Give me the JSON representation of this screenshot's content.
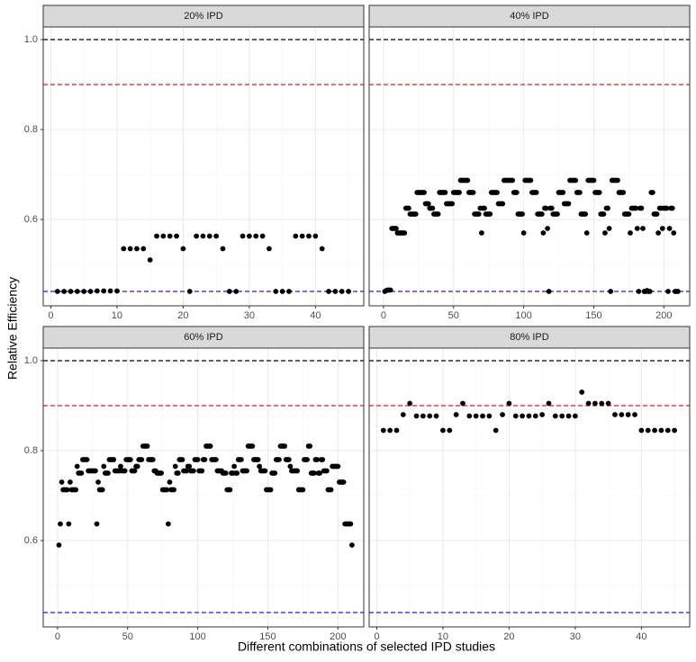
{
  "axis_labels": {
    "x": "Different combinations of selected IPD studies",
    "y": "Relative Efficiency"
  },
  "chart_data": [
    {
      "type": "scatter",
      "title": "20% IPD",
      "color": "#000000",
      "x": [
        1,
        2,
        3,
        4,
        5,
        6,
        7,
        8,
        9,
        10,
        11,
        12,
        13,
        14,
        15,
        16,
        17,
        18,
        19,
        20,
        21,
        22,
        23,
        24,
        25,
        26,
        27,
        28,
        29,
        30,
        31,
        32,
        33,
        34,
        35,
        36,
        37,
        38,
        39,
        40,
        41,
        42,
        43,
        44,
        45
      ],
      "values": [
        0.44,
        0.44,
        0.44,
        0.44,
        0.44,
        0.44,
        0.441,
        0.441,
        0.441,
        0.441,
        0.535,
        0.535,
        0.535,
        0.535,
        0.51,
        0.563,
        0.563,
        0.563,
        0.563,
        0.535,
        0.44,
        0.563,
        0.563,
        0.563,
        0.563,
        0.535,
        0.44,
        0.44,
        0.563,
        0.563,
        0.563,
        0.563,
        0.535,
        0.44,
        0.44,
        0.44,
        0.563,
        0.563,
        0.563,
        0.563,
        0.535,
        0.44,
        0.44,
        0.44,
        0.44
      ],
      "xlim": [
        -1.15,
        47.3
      ],
      "ylim": [
        0.408,
        1.028
      ],
      "xticks": [
        0,
        10,
        20,
        30,
        40
      ],
      "xminor": [
        5,
        15,
        25,
        35,
        45
      ],
      "yticks": [
        0.6,
        0.8,
        {
          "value": 1,
          "label": "1.0"
        }
      ],
      "yminor": [
        0.5,
        0.7,
        0.9
      ],
      "reference_lines": [
        {
          "value": 1,
          "color": "#000000"
        },
        {
          "value": 0.9,
          "color": "#e41a1c"
        },
        {
          "value": 0.44,
          "color": "#1f1fd6"
        }
      ]
    },
    {
      "type": "scatter",
      "title": "40% IPD",
      "color": "#000000",
      "x": [
        1,
        2,
        3,
        4,
        5,
        6,
        7,
        8,
        9,
        10,
        11,
        12,
        13,
        14,
        15,
        16,
        17,
        18,
        19,
        20,
        21,
        22,
        23,
        24,
        25,
        26,
        27,
        28,
        29,
        30,
        31,
        32,
        33,
        34,
        35,
        36,
        37,
        38,
        39,
        40,
        41,
        42,
        43,
        44,
        45,
        46,
        47,
        48,
        49,
        50,
        51,
        52,
        53,
        54,
        55,
        56,
        57,
        58,
        59,
        60,
        61,
        62,
        63,
        64,
        65,
        66,
        67,
        68,
        69,
        70,
        71,
        72,
        73,
        74,
        75,
        76,
        77,
        78,
        79,
        80,
        81,
        82,
        83,
        84,
        85,
        86,
        87,
        88,
        89,
        90,
        91,
        92,
        93,
        94,
        95,
        96,
        97,
        98,
        99,
        100,
        101,
        102,
        103,
        104,
        105,
        106,
        107,
        108,
        109,
        110,
        111,
        112,
        113,
        114,
        115,
        116,
        117,
        118,
        119,
        120,
        121,
        122,
        123,
        124,
        125,
        126,
        127,
        128,
        129,
        130,
        131,
        132,
        133,
        134,
        135,
        136,
        137,
        138,
        139,
        140,
        141,
        142,
        143,
        144,
        145,
        146,
        147,
        148,
        149,
        150,
        151,
        152,
        153,
        154,
        155,
        156,
        157,
        158,
        159,
        160,
        161,
        162,
        163,
        164,
        165,
        166,
        167,
        168,
        169,
        170,
        171,
        172,
        173,
        174,
        175,
        176,
        177,
        178,
        179,
        180,
        181,
        182,
        183,
        184,
        185,
        186,
        187,
        188,
        189,
        190,
        191,
        192,
        193,
        194,
        195,
        196,
        197,
        198,
        199,
        200,
        201,
        202,
        203,
        204,
        205,
        206,
        207,
        208,
        209,
        210
      ],
      "values": [
        0.44,
        0.442,
        0.443,
        0.443,
        0.443,
        0.58,
        0.58,
        0.58,
        0.58,
        0.57,
        0.57,
        0.57,
        0.57,
        0.57,
        0.57,
        0.625,
        0.625,
        0.625,
        0.612,
        0.612,
        0.612,
        0.612,
        0.612,
        0.66,
        0.66,
        0.66,
        0.66,
        0.66,
        0.66,
        0.635,
        0.635,
        0.635,
        0.625,
        0.625,
        0.625,
        0.612,
        0.612,
        0.612,
        0.612,
        0.66,
        0.66,
        0.66,
        0.66,
        0.66,
        0.635,
        0.635,
        0.635,
        0.635,
        0.635,
        0.66,
        0.66,
        0.66,
        0.66,
        0.66,
        0.687,
        0.687,
        0.687,
        0.687,
        0.687,
        0.687,
        0.66,
        0.66,
        0.66,
        0.66,
        0.612,
        0.612,
        0.612,
        0.612,
        0.625,
        0.57,
        0.625,
        0.625,
        0.612,
        0.612,
        0.612,
        0.612,
        0.66,
        0.66,
        0.66,
        0.66,
        0.66,
        0.635,
        0.635,
        0.635,
        0.635,
        0.687,
        0.687,
        0.687,
        0.687,
        0.687,
        0.687,
        0.687,
        0.66,
        0.66,
        0.66,
        0.612,
        0.612,
        0.612,
        0.612,
        0.57,
        0.687,
        0.687,
        0.687,
        0.687,
        0.687,
        0.66,
        0.66,
        0.66,
        0.66,
        0.612,
        0.612,
        0.612,
        0.612,
        0.57,
        0.625,
        0.625,
        0.58,
        0.44,
        0.625,
        0.625,
        0.612,
        0.612,
        0.612,
        0.612,
        0.66,
        0.66,
        0.66,
        0.66,
        0.635,
        0.635,
        0.635,
        0.635,
        0.687,
        0.687,
        0.687,
        0.687,
        0.687,
        0.66,
        0.66,
        0.66,
        0.612,
        0.612,
        0.612,
        0.612,
        0.57,
        0.687,
        0.687,
        0.687,
        0.687,
        0.687,
        0.66,
        0.66,
        0.66,
        0.66,
        0.612,
        0.612,
        0.612,
        0.57,
        0.625,
        0.625,
        0.58,
        0.44,
        0.687,
        0.687,
        0.687,
        0.687,
        0.687,
        0.66,
        0.66,
        0.66,
        0.66,
        0.612,
        0.612,
        0.612,
        0.612,
        0.57,
        0.625,
        0.625,
        0.625,
        0.625,
        0.58,
        0.44,
        0.625,
        0.625,
        0.58,
        0.44,
        0.44,
        0.442,
        0.44,
        0.44,
        0.66,
        0.66,
        0.612,
        0.612,
        0.612,
        0.57,
        0.625,
        0.625,
        0.58,
        0.625,
        0.625,
        0.625,
        0.44,
        0.58,
        0.625,
        0.625,
        0.57,
        0.44,
        0.44,
        0.44
      ],
      "xlim": [
        -10.2,
        218.4
      ],
      "ylim": [
        0.408,
        1.028
      ],
      "xticks": [
        0,
        50,
        100,
        150,
        200
      ],
      "xminor": [
        25,
        75,
        125,
        175
      ],
      "yticks": [
        0.6,
        0.8,
        {
          "value": 1,
          "label": "1.0"
        }
      ],
      "yminor": [
        0.5,
        0.7,
        0.9
      ],
      "reference_lines": [
        {
          "value": 1,
          "color": "#000000"
        },
        {
          "value": 0.9,
          "color": "#e41a1c"
        },
        {
          "value": 0.44,
          "color": "#1f1fd6"
        }
      ]
    },
    {
      "type": "scatter",
      "title": "60% IPD",
      "color": "#000000",
      "x": [
        1,
        2,
        3,
        4,
        5,
        6,
        7,
        8,
        9,
        10,
        11,
        12,
        13,
        14,
        15,
        16,
        17,
        18,
        19,
        20,
        21,
        22,
        23,
        24,
        25,
        26,
        27,
        28,
        29,
        30,
        31,
        32,
        33,
        34,
        35,
        36,
        37,
        38,
        39,
        40,
        41,
        42,
        43,
        44,
        45,
        46,
        47,
        48,
        49,
        50,
        51,
        52,
        53,
        54,
        55,
        56,
        57,
        58,
        59,
        60,
        61,
        62,
        63,
        64,
        65,
        66,
        67,
        68,
        69,
        70,
        71,
        72,
        73,
        74,
        75,
        76,
        77,
        78,
        79,
        80,
        81,
        82,
        83,
        84,
        85,
        86,
        87,
        88,
        89,
        90,
        91,
        92,
        93,
        94,
        95,
        96,
        97,
        98,
        99,
        100,
        101,
        102,
        103,
        104,
        105,
        106,
        107,
        108,
        109,
        110,
        111,
        112,
        113,
        114,
        115,
        116,
        117,
        118,
        119,
        120,
        121,
        122,
        123,
        124,
        125,
        126,
        127,
        128,
        129,
        130,
        131,
        132,
        133,
        134,
        135,
        136,
        137,
        138,
        139,
        140,
        141,
        142,
        143,
        144,
        145,
        146,
        147,
        148,
        149,
        150,
        151,
        152,
        153,
        154,
        155,
        156,
        157,
        158,
        159,
        160,
        161,
        162,
        163,
        164,
        165,
        166,
        167,
        168,
        169,
        170,
        171,
        172,
        173,
        174,
        175,
        176,
        177,
        178,
        179,
        180,
        181,
        182,
        183,
        184,
        185,
        186,
        187,
        188,
        189,
        190,
        191,
        192,
        193,
        194,
        195,
        196,
        197,
        198,
        199,
        200,
        201,
        202,
        203,
        204,
        205,
        206,
        207,
        208,
        209,
        210
      ],
      "values": [
        0.59,
        0.637,
        0.73,
        0.713,
        0.713,
        0.713,
        0.713,
        0.637,
        0.73,
        0.713,
        0.713,
        0.713,
        0.713,
        0.765,
        0.75,
        0.75,
        0.75,
        0.78,
        0.78,
        0.78,
        0.78,
        0.755,
        0.755,
        0.755,
        0.755,
        0.755,
        0.755,
        0.637,
        0.73,
        0.713,
        0.713,
        0.713,
        0.765,
        0.75,
        0.75,
        0.75,
        0.78,
        0.78,
        0.78,
        0.78,
        0.755,
        0.755,
        0.755,
        0.755,
        0.765,
        0.755,
        0.755,
        0.755,
        0.78,
        0.78,
        0.78,
        0.78,
        0.755,
        0.755,
        0.755,
        0.765,
        0.765,
        0.78,
        0.78,
        0.78,
        0.81,
        0.81,
        0.81,
        0.81,
        0.78,
        0.78,
        0.78,
        0.78,
        0.755,
        0.755,
        0.75,
        0.75,
        0.75,
        0.75,
        0.713,
        0.713,
        0.713,
        0.713,
        0.637,
        0.73,
        0.713,
        0.713,
        0.713,
        0.765,
        0.75,
        0.75,
        0.78,
        0.78,
        0.78,
        0.755,
        0.755,
        0.755,
        0.765,
        0.765,
        0.755,
        0.755,
        0.755,
        0.78,
        0.78,
        0.78,
        0.755,
        0.755,
        0.755,
        0.78,
        0.78,
        0.81,
        0.81,
        0.81,
        0.81,
        0.78,
        0.78,
        0.78,
        0.78,
        0.755,
        0.755,
        0.755,
        0.755,
        0.75,
        0.75,
        0.75,
        0.713,
        0.713,
        0.713,
        0.75,
        0.75,
        0.765,
        0.75,
        0.75,
        0.78,
        0.78,
        0.78,
        0.755,
        0.755,
        0.755,
        0.755,
        0.81,
        0.81,
        0.81,
        0.81,
        0.78,
        0.78,
        0.78,
        0.78,
        0.765,
        0.755,
        0.755,
        0.755,
        0.755,
        0.713,
        0.713,
        0.713,
        0.713,
        0.75,
        0.75,
        0.75,
        0.78,
        0.78,
        0.78,
        0.81,
        0.81,
        0.81,
        0.81,
        0.78,
        0.78,
        0.78,
        0.765,
        0.755,
        0.755,
        0.755,
        0.755,
        0.755,
        0.713,
        0.713,
        0.713,
        0.713,
        0.78,
        0.78,
        0.78,
        0.81,
        0.81,
        0.75,
        0.75,
        0.75,
        0.78,
        0.78,
        0.75,
        0.75,
        0.78,
        0.78,
        0.755,
        0.755,
        0.755,
        0.713,
        0.713,
        0.713,
        0.765,
        0.765,
        0.765,
        0.765,
        0.765,
        0.73,
        0.73,
        0.73,
        0.73,
        0.637,
        0.637,
        0.637,
        0.637,
        0.637,
        0.59
      ],
      "xlim": [
        -10.2,
        218.4
      ],
      "ylim": [
        0.408,
        1.028
      ],
      "xticks": [
        0,
        50,
        100,
        150,
        200
      ],
      "xminor": [
        25,
        75,
        125,
        175
      ],
      "yticks": [
        0.6,
        0.8,
        {
          "value": 1,
          "label": "1.0"
        }
      ],
      "yminor": [
        0.5,
        0.7,
        0.9
      ],
      "reference_lines": [
        {
          "value": 1,
          "color": "#000000"
        },
        {
          "value": 0.9,
          "color": "#e41a1c"
        },
        {
          "value": 0.44,
          "color": "#1f1fd6"
        }
      ]
    },
    {
      "type": "scatter",
      "title": "80% IPD",
      "color": "#000000",
      "x": [
        1,
        2,
        3,
        4,
        5,
        6,
        7,
        8,
        9,
        10,
        11,
        12,
        13,
        14,
        15,
        16,
        17,
        18,
        19,
        20,
        21,
        22,
        23,
        24,
        25,
        26,
        27,
        28,
        29,
        30,
        31,
        32,
        33,
        34,
        35,
        36,
        37,
        38,
        39,
        40,
        41,
        42,
        43,
        44,
        45
      ],
      "values": [
        0.845,
        0.845,
        0.845,
        0.88,
        0.905,
        0.877,
        0.877,
        0.877,
        0.877,
        0.845,
        0.845,
        0.88,
        0.905,
        0.877,
        0.877,
        0.877,
        0.877,
        0.845,
        0.88,
        0.905,
        0.877,
        0.877,
        0.877,
        0.877,
        0.88,
        0.905,
        0.877,
        0.877,
        0.877,
        0.877,
        0.93,
        0.905,
        0.905,
        0.905,
        0.905,
        0.88,
        0.88,
        0.88,
        0.88,
        0.845,
        0.845,
        0.845,
        0.845,
        0.845,
        0.845
      ],
      "xlim": [
        -1.15,
        47.3
      ],
      "ylim": [
        0.408,
        1.028
      ],
      "xticks": [
        0,
        10,
        20,
        30,
        40
      ],
      "xminor": [
        5,
        15,
        25,
        35,
        45
      ],
      "yticks": [
        0.6,
        0.8,
        {
          "value": 1,
          "label": "1.0"
        }
      ],
      "yminor": [
        0.5,
        0.7,
        0.9
      ],
      "reference_lines": [
        {
          "value": 1,
          "color": "#000000"
        },
        {
          "value": 0.9,
          "color": "#e41a1c"
        },
        {
          "value": 0.44,
          "color": "#1f1fd6"
        }
      ]
    }
  ]
}
